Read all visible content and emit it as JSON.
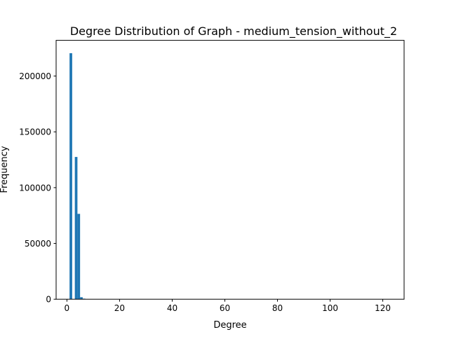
{
  "chart_data": {
    "type": "bar",
    "title": "Degree Distribution of Graph - medium_tension_without_2",
    "xlabel": "Degree",
    "ylabel": "Frequency",
    "xlim": [
      -4.1,
      128.1
    ],
    "ylim": [
      0,
      232000
    ],
    "xticks": [
      0,
      20,
      40,
      60,
      80,
      100,
      120
    ],
    "yticks": [
      0,
      50000,
      100000,
      150000,
      200000
    ],
    "bar_width": 1,
    "color": "#1f77b4",
    "bins": [
      {
        "x": 1.5,
        "value": 220500
      },
      {
        "x": 3.5,
        "value": 127500
      },
      {
        "x": 4.5,
        "value": 76500
      },
      {
        "x": 5.5,
        "value": 1800
      },
      {
        "x": 6.5,
        "value": 500
      }
    ],
    "grid": false,
    "legend": "none"
  }
}
